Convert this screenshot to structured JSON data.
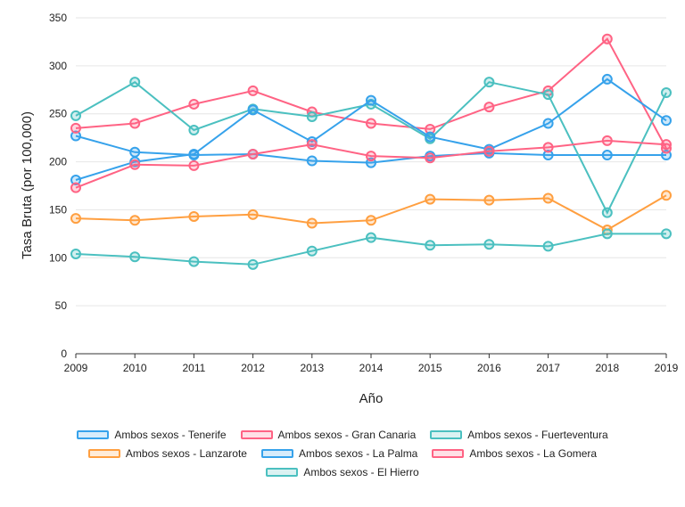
{
  "chart_data": {
    "type": "line",
    "xlabel": "Año",
    "ylabel": "Tasa Bruta (por 100,000)",
    "ylim": [
      0,
      350
    ],
    "yticks": [
      0,
      50,
      100,
      150,
      200,
      250,
      300,
      350
    ],
    "x": [
      "2009",
      "2010",
      "2011",
      "2012",
      "2013",
      "2014",
      "2015",
      "2016",
      "2017",
      "2018",
      "2019"
    ],
    "grid": true,
    "legend_position": "bottom",
    "series": [
      {
        "name": "Ambos sexos - Tenerife",
        "color": "#36a2eb",
        "values": [
          227,
          210,
          207,
          208,
          201,
          199,
          206,
          209,
          207,
          207,
          207
        ]
      },
      {
        "name": "Ambos sexos - Gran Canaria",
        "color": "#ff6384",
        "values": [
          235,
          240,
          260,
          274,
          252,
          240,
          234,
          257,
          274,
          328,
          214
        ]
      },
      {
        "name": "Ambos sexos - Fuerteventura",
        "color": "#4bc0c0",
        "values": [
          248,
          283,
          233,
          255,
          247,
          260,
          224,
          283,
          270,
          147,
          272
        ]
      },
      {
        "name": "Ambos sexos - Lanzarote",
        "color": "#ff9f40",
        "values": [
          141,
          139,
          143,
          145,
          136,
          139,
          161,
          160,
          162,
          129,
          165
        ]
      },
      {
        "name": "Ambos sexos - La Palma",
        "color": "#36a2eb",
        "values": [
          181,
          200,
          208,
          254,
          221,
          264,
          226,
          213,
          240,
          286,
          243
        ]
      },
      {
        "name": "Ambos sexos - La Gomera",
        "color": "#ff6384",
        "values": [
          173,
          197,
          196,
          208,
          218,
          206,
          204,
          211,
          215,
          222,
          218
        ]
      },
      {
        "name": "Ambos sexos - El Hierro",
        "color": "#4bc0c0",
        "values": [
          104,
          101,
          96,
          93,
          107,
          121,
          113,
          114,
          112,
          125,
          125
        ]
      }
    ]
  }
}
